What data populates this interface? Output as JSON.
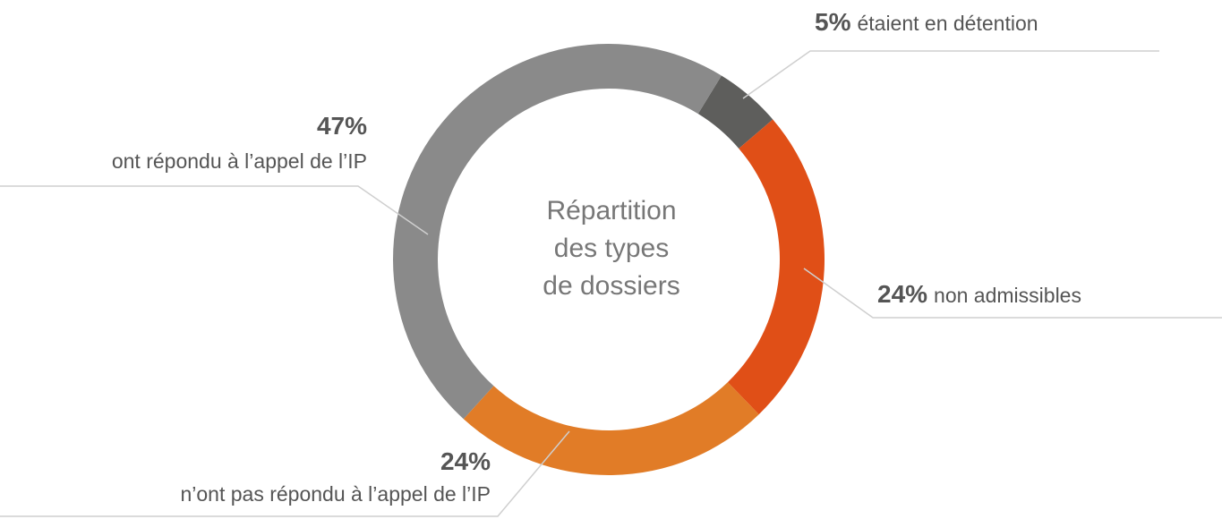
{
  "chart_data": {
    "type": "donut",
    "title": [
      "Répartition",
      "des types",
      "de dossiers"
    ],
    "start_angle": 31.5,
    "series": [
      {
        "name": "étaient en détention",
        "color": "#5e5e5c",
        "values": [
          5
        ],
        "value_labels": [
          "5%"
        ]
      },
      {
        "name": "non admissibles",
        "color": "#e04f17",
        "values": [
          24
        ],
        "value_labels": [
          "24%"
        ]
      },
      {
        "name": "n’ont pas répondu à l’appel de l’IP",
        "color": "#e17c27",
        "values": [
          24
        ],
        "value_labels": [
          "24%"
        ]
      },
      {
        "name": "ont répondu à l’appel de l’IP",
        "color": "#8a8a8a",
        "values": [
          47
        ],
        "value_labels": [
          "47%"
        ]
      }
    ]
  }
}
